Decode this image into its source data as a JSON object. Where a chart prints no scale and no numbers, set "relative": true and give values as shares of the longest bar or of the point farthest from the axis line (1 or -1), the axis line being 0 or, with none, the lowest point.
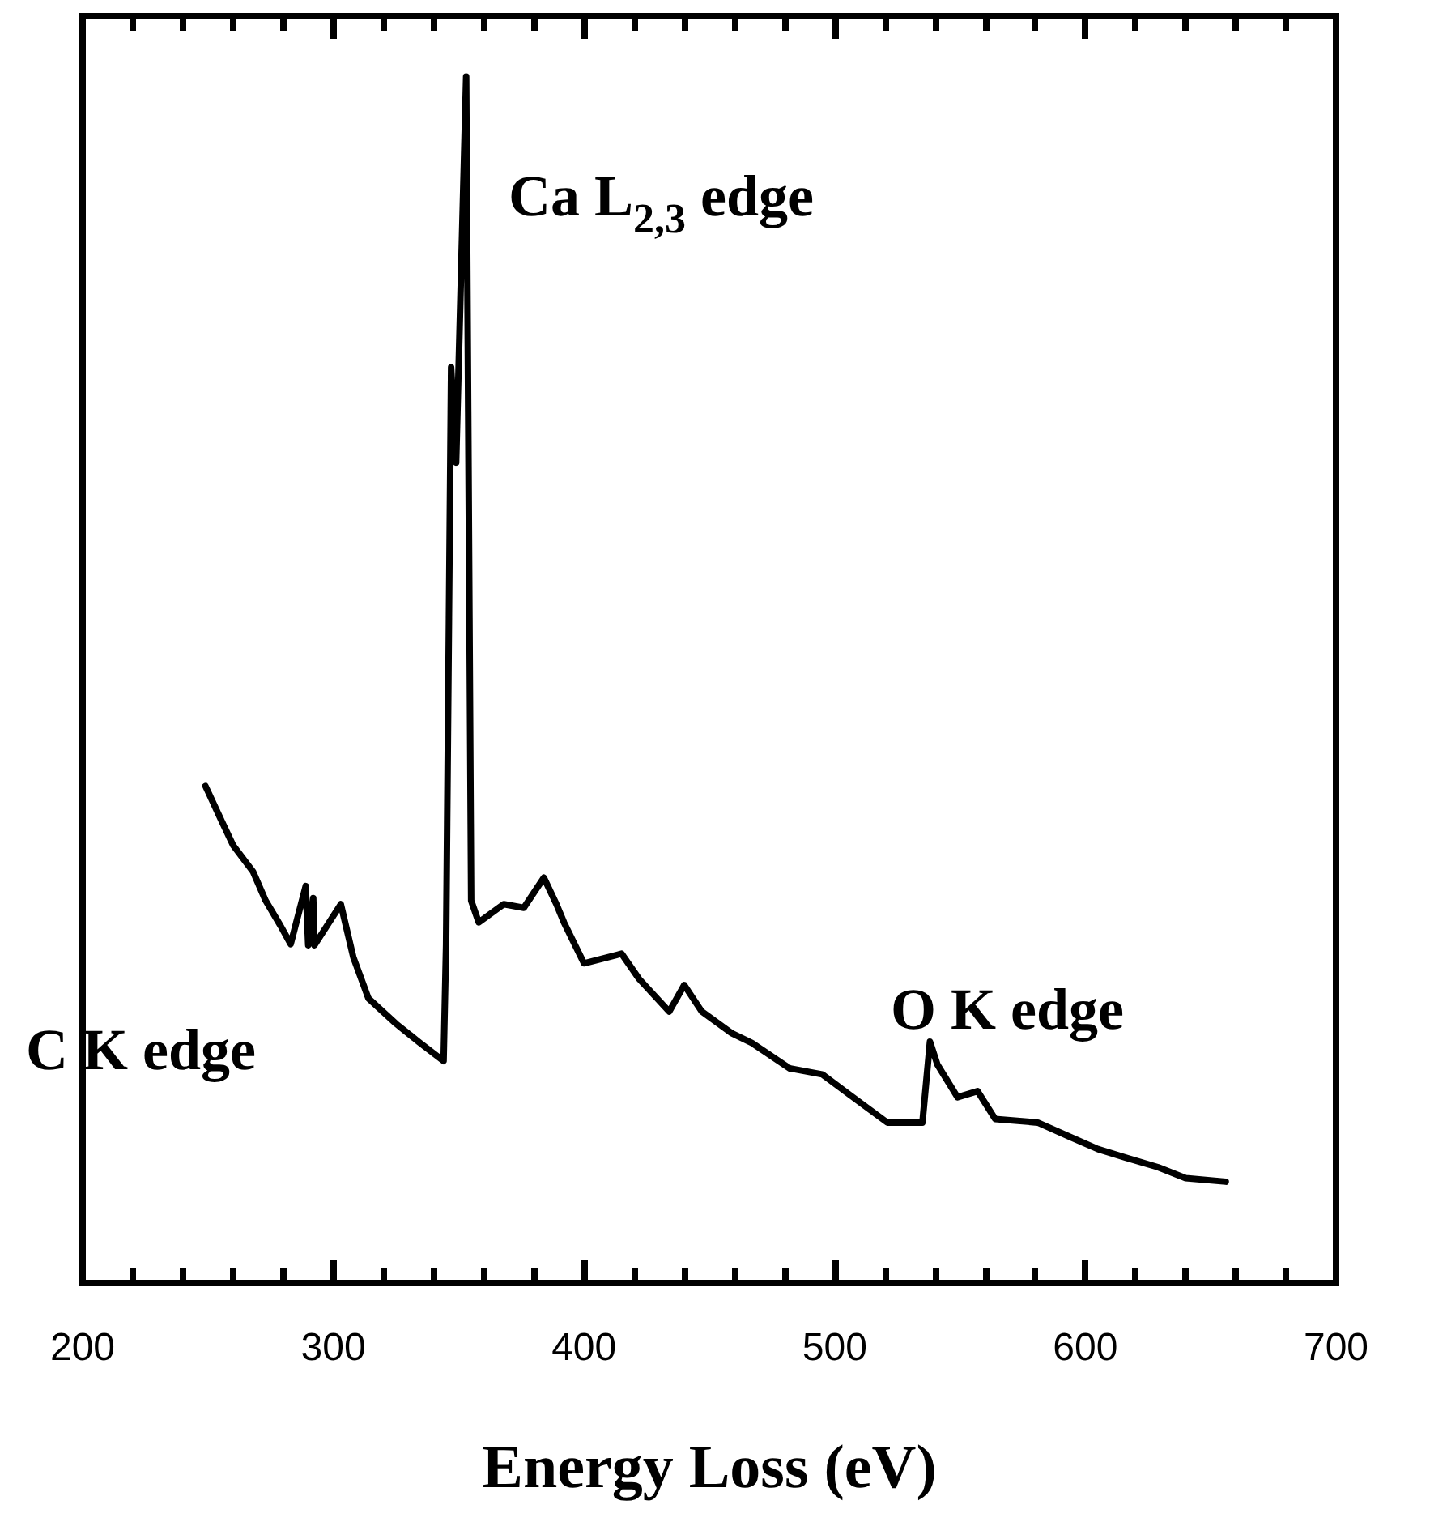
{
  "chart_data": {
    "type": "line",
    "relative": true,
    "xlabel": "Energy Loss (eV)",
    "xlim": [
      200,
      700
    ],
    "xticks": [
      200,
      300,
      400,
      500,
      600,
      700
    ],
    "grid": false,
    "marker": "none",
    "line_style": "solid",
    "x": [
      249,
      255,
      260,
      268,
      273,
      279,
      283,
      289,
      290,
      292,
      292.5,
      303,
      308,
      314,
      325,
      334,
      344,
      345,
      347,
      349,
      353,
      355,
      358,
      368,
      376,
      384,
      389,
      392,
      400,
      415,
      422,
      434,
      440,
      447,
      459,
      467,
      482,
      495,
      506,
      521,
      535,
      538,
      541,
      549,
      557,
      564,
      581,
      594,
      605,
      616,
      629,
      640,
      656
    ],
    "series": [
      {
        "color": "#000000",
        "values": [
          0.412,
          0.385,
          0.363,
          0.341,
          0.317,
          0.296,
          0.281,
          0.329,
          0.28,
          0.319,
          0.28,
          0.314,
          0.27,
          0.236,
          0.215,
          0.2,
          0.184,
          0.28,
          0.759,
          0.68,
          1.0,
          0.317,
          0.299,
          0.314,
          0.311,
          0.336,
          0.314,
          0.299,
          0.265,
          0.273,
          0.252,
          0.225,
          0.247,
          0.225,
          0.207,
          0.199,
          0.178,
          0.173,
          0.156,
          0.133,
          0.133,
          0.2,
          0.181,
          0.154,
          0.159,
          0.136,
          0.133,
          0.121,
          0.111,
          0.104,
          0.096,
          0.087,
          0.084
        ]
      }
    ],
    "annotations": [
      "Ca L$_{2,3}$ edge",
      "C K edge",
      "O K edge"
    ]
  }
}
